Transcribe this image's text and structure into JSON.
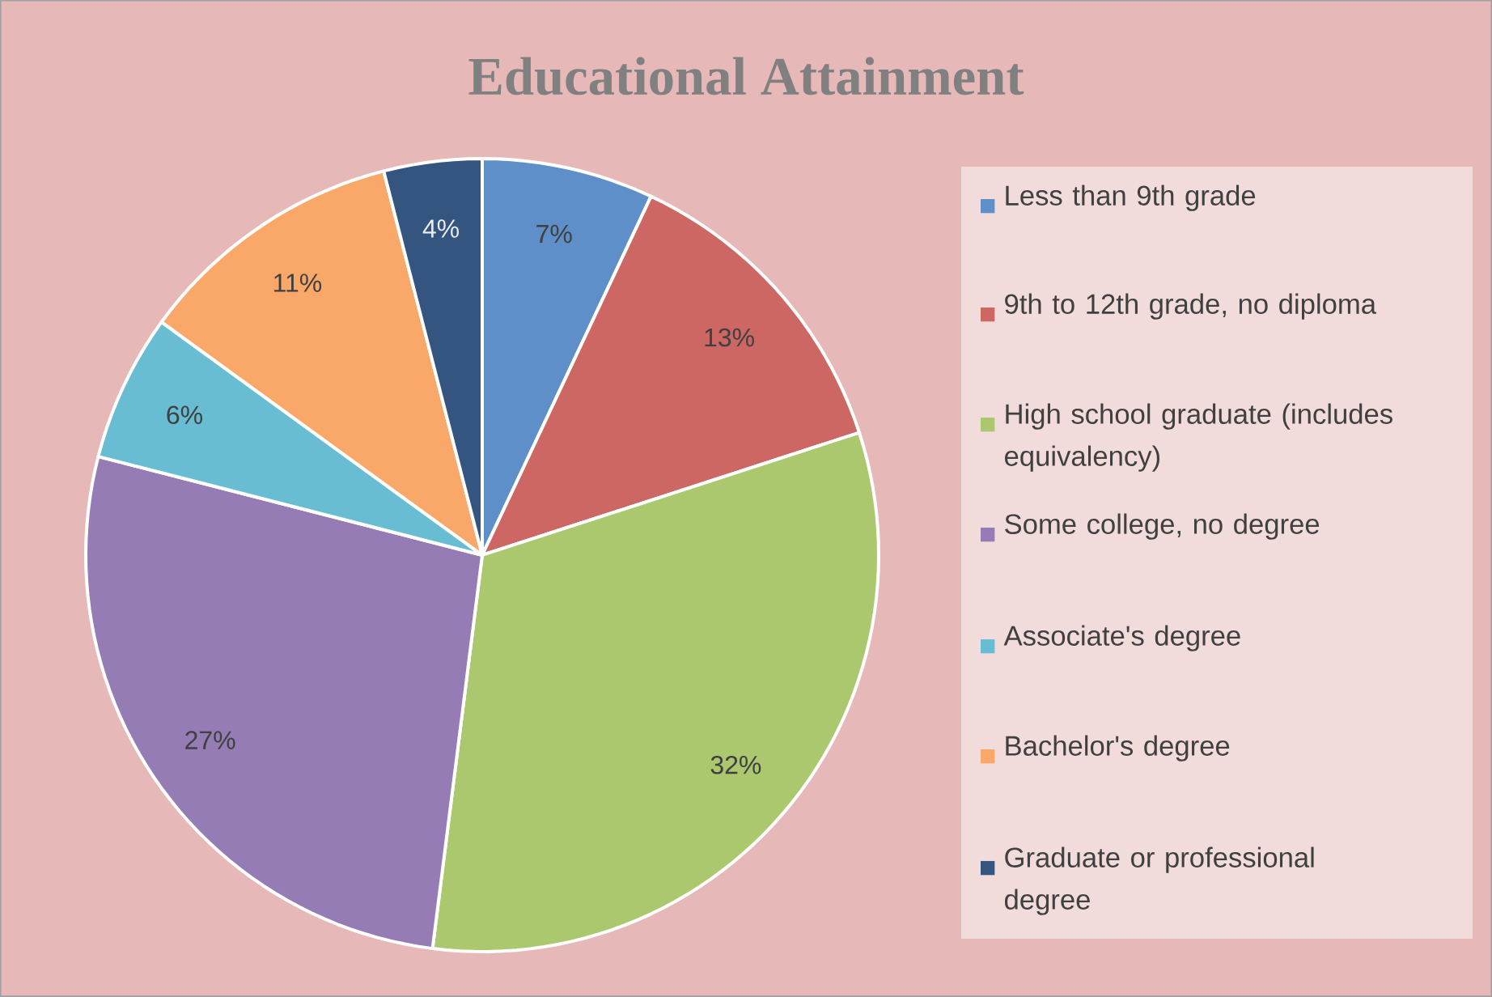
{
  "chart_data": {
    "type": "pie",
    "title": "Educational Attainment",
    "categories": [
      "Less than 9th grade",
      "9th to 12th grade, no diploma",
      "High school graduate (includes equivalency)",
      "Some college, no degree",
      "Associate's degree",
      "Bachelor's degree",
      "Graduate or professional degree"
    ],
    "values": [
      7,
      13,
      32,
      27,
      6,
      11,
      4
    ],
    "value_labels": [
      "7%",
      "13%",
      "32%",
      "27%",
      "6%",
      "11%",
      "4%"
    ],
    "colors": [
      "#5f8fc9",
      "#cd6764",
      "#acc86f",
      "#957cb4",
      "#68bdd3",
      "#f9a86a",
      "#34557f"
    ],
    "legend": "right"
  }
}
